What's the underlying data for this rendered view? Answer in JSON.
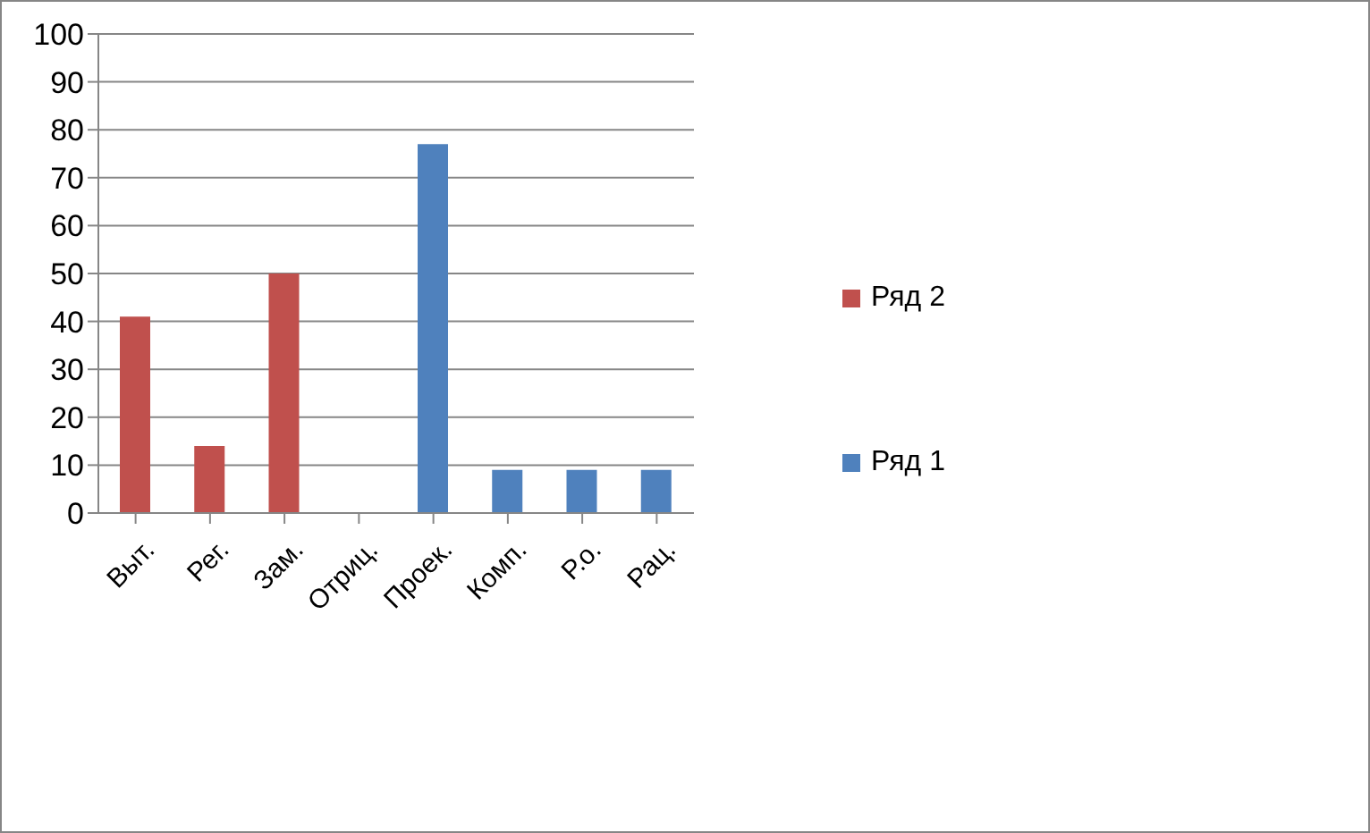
{
  "chart_data": {
    "type": "bar",
    "stacked": true,
    "categories": [
      "Выт.",
      "Рег.",
      "Зам.",
      "Отриц.",
      "Проек.",
      "Комп.",
      "Р.о.",
      "Рац."
    ],
    "series": [
      {
        "name": "Ряд 2",
        "color": "#c0504d",
        "values": [
          41,
          14,
          50,
          null,
          null,
          null,
          null,
          null
        ]
      },
      {
        "name": "Ряд 1",
        "color": "#4f81bd",
        "values": [
          null,
          null,
          null,
          null,
          77,
          9,
          9,
          9
        ]
      }
    ],
    "ylim": [
      0,
      100
    ],
    "yticks": [
      0,
      10,
      20,
      30,
      40,
      50,
      60,
      70,
      80,
      90,
      100
    ],
    "grid": "y",
    "legend": "right"
  }
}
